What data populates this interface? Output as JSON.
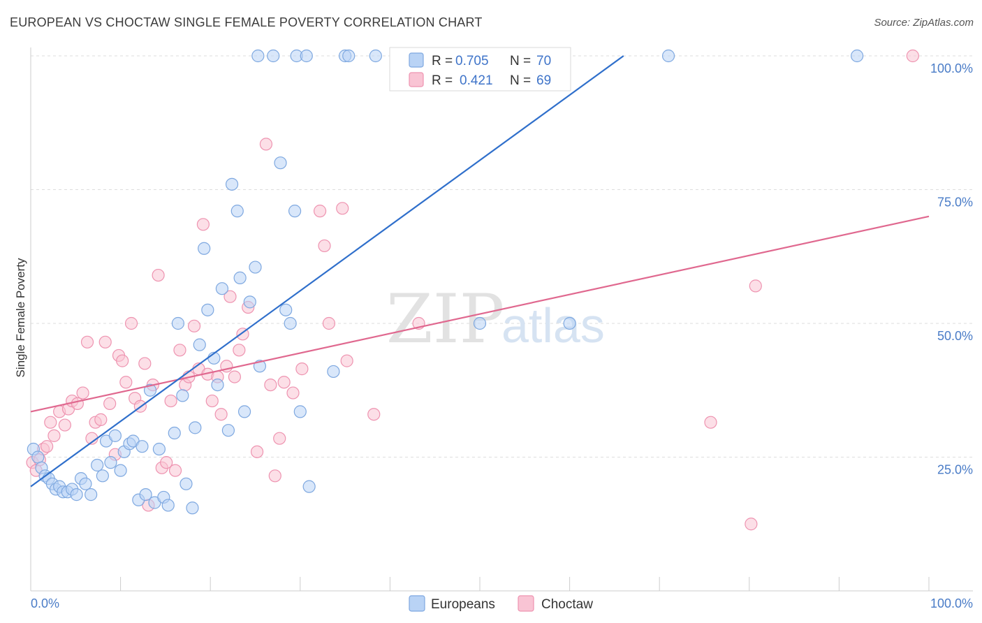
{
  "header": {
    "title": "EUROPEAN VS CHOCTAW SINGLE FEMALE POVERTY CORRELATION CHART",
    "source": "Source: ZipAtlas.com"
  },
  "watermark": {
    "zip": "ZIP",
    "atlas": "atlas"
  },
  "colors": {
    "europeans_fill": "#b9d3f5",
    "europeans_stroke": "#7ea8e0",
    "europeans_line": "#2f6fcb",
    "choctaw_fill": "#f9c4d4",
    "choctaw_stroke": "#ee93b0",
    "choctaw_line": "#e0688f",
    "tick_label": "#4a7cc7",
    "grid": "#dddddd"
  },
  "legend": {
    "rows": [
      {
        "r_label": "R =",
        "r_value": "0.705",
        "n_label": "N =",
        "n_value": "70"
      },
      {
        "r_label": "R =",
        "r_value": "0.421",
        "n_label": "N =",
        "n_value": "69"
      }
    ]
  },
  "chart_data": {
    "type": "scatter",
    "title": "EUROPEAN VS CHOCTAW SINGLE FEMALE POVERTY CORRELATION CHART",
    "xlabel": "",
    "ylabel": "Single Female Poverty",
    "xlim": [
      0,
      100
    ],
    "ylim": [
      0,
      100
    ],
    "x_tick_labels": [
      "0.0%",
      "100.0%"
    ],
    "y_ticks": [
      25,
      50,
      75,
      100
    ],
    "y_tick_labels": [
      "25.0%",
      "50.0%",
      "75.0%",
      "100.0%"
    ],
    "grid": true,
    "legend_position": "top-center",
    "series": [
      {
        "name": "Europeans",
        "r": 0.705,
        "n": 70,
        "trend": {
          "x": [
            0,
            66
          ],
          "y": [
            19.5,
            100
          ]
        },
        "points": [
          [
            0.3,
            26.5
          ],
          [
            0.8,
            25
          ],
          [
            1.2,
            23
          ],
          [
            1.6,
            21.5
          ],
          [
            2,
            21
          ],
          [
            2.4,
            20
          ],
          [
            2.8,
            19
          ],
          [
            3.2,
            19.5
          ],
          [
            3.6,
            18.5
          ],
          [
            4.1,
            18.5
          ],
          [
            4.6,
            19
          ],
          [
            5.1,
            18
          ],
          [
            5.6,
            21
          ],
          [
            6.1,
            20
          ],
          [
            6.7,
            18
          ],
          [
            7.4,
            23.5
          ],
          [
            8,
            21.5
          ],
          [
            8.4,
            28
          ],
          [
            8.9,
            24
          ],
          [
            9.4,
            29
          ],
          [
            10,
            22.5
          ],
          [
            10.4,
            26
          ],
          [
            11,
            27.5
          ],
          [
            11.4,
            28
          ],
          [
            12,
            17
          ],
          [
            12.4,
            27
          ],
          [
            12.8,
            18
          ],
          [
            13.3,
            37.5
          ],
          [
            13.8,
            16.5
          ],
          [
            14.3,
            26.5
          ],
          [
            14.8,
            17.5
          ],
          [
            15.3,
            16
          ],
          [
            16,
            29.5
          ],
          [
            16.4,
            50
          ],
          [
            16.9,
            36.5
          ],
          [
            17.3,
            20
          ],
          [
            18,
            15.5
          ],
          [
            18.3,
            30.5
          ],
          [
            18.8,
            46
          ],
          [
            19.3,
            64
          ],
          [
            19.7,
            52.5
          ],
          [
            20.4,
            43.5
          ],
          [
            20.8,
            38.5
          ],
          [
            21.3,
            56.5
          ],
          [
            22,
            30
          ],
          [
            22.4,
            76
          ],
          [
            23,
            71
          ],
          [
            23.3,
            58.5
          ],
          [
            23.8,
            33.5
          ],
          [
            24.4,
            54
          ],
          [
            25,
            60.5
          ],
          [
            25.5,
            42
          ],
          [
            25.3,
            100
          ],
          [
            27,
            100
          ],
          [
            27.8,
            80
          ],
          [
            28.4,
            52.5
          ],
          [
            29.4,
            71
          ],
          [
            30,
            33.5
          ],
          [
            29.6,
            100
          ],
          [
            30.7,
            100
          ],
          [
            31,
            19.5
          ],
          [
            33.7,
            41
          ],
          [
            35,
            100
          ],
          [
            35.4,
            100
          ],
          [
            38.4,
            100
          ],
          [
            50,
            50
          ],
          [
            60,
            50
          ],
          [
            71,
            100
          ],
          [
            92,
            100
          ],
          [
            28.9,
            50
          ]
        ]
      },
      {
        "name": "Choctaw",
        "r": 0.421,
        "n": 69,
        "trend": {
          "x": [
            0,
            100
          ],
          "y": [
            33.5,
            70
          ]
        },
        "points": [
          [
            0.2,
            24
          ],
          [
            0.6,
            22.5
          ],
          [
            1,
            24.5
          ],
          [
            1.4,
            26.5
          ],
          [
            1.8,
            27
          ],
          [
            2.2,
            31.5
          ],
          [
            2.6,
            29
          ],
          [
            3.2,
            33.5
          ],
          [
            3.8,
            31
          ],
          [
            4.2,
            34
          ],
          [
            4.6,
            35.5
          ],
          [
            5.2,
            35
          ],
          [
            5.8,
            37
          ],
          [
            6.3,
            46.5
          ],
          [
            6.8,
            28.5
          ],
          [
            7.2,
            31.5
          ],
          [
            7.8,
            32
          ],
          [
            8.3,
            46.5
          ],
          [
            8.8,
            35
          ],
          [
            9.4,
            25.5
          ],
          [
            9.8,
            44
          ],
          [
            10.2,
            43
          ],
          [
            10.6,
            39
          ],
          [
            11.2,
            50
          ],
          [
            11.6,
            36
          ],
          [
            12.2,
            34.5
          ],
          [
            12.7,
            42.5
          ],
          [
            13.1,
            16
          ],
          [
            13.6,
            38.5
          ],
          [
            14.2,
            59
          ],
          [
            14.6,
            23
          ],
          [
            15.1,
            24
          ],
          [
            15.6,
            35.5
          ],
          [
            16.1,
            22.5
          ],
          [
            16.6,
            45
          ],
          [
            17.2,
            38.5
          ],
          [
            17.6,
            40
          ],
          [
            18.2,
            49.5
          ],
          [
            18.7,
            41.5
          ],
          [
            19.2,
            68.5
          ],
          [
            19.7,
            40.5
          ],
          [
            20.2,
            35.5
          ],
          [
            20.8,
            40
          ],
          [
            21.2,
            33
          ],
          [
            21.8,
            42
          ],
          [
            22.2,
            55
          ],
          [
            22.7,
            40
          ],
          [
            23.2,
            45
          ],
          [
            23.6,
            48
          ],
          [
            24.2,
            53
          ],
          [
            25.2,
            26
          ],
          [
            26.2,
            83.5
          ],
          [
            26.7,
            38.5
          ],
          [
            27.2,
            21.5
          ],
          [
            27.7,
            28.5
          ],
          [
            28.2,
            39
          ],
          [
            29.2,
            37
          ],
          [
            30.2,
            41.5
          ],
          [
            32.2,
            71
          ],
          [
            32.7,
            64.5
          ],
          [
            33.2,
            50
          ],
          [
            34.7,
            71.5
          ],
          [
            35.2,
            43
          ],
          [
            38.2,
            33
          ],
          [
            43.2,
            50
          ],
          [
            75.7,
            31.5
          ],
          [
            80.2,
            12.5
          ],
          [
            80.7,
            57
          ],
          [
            98.2,
            100
          ]
        ]
      }
    ]
  }
}
